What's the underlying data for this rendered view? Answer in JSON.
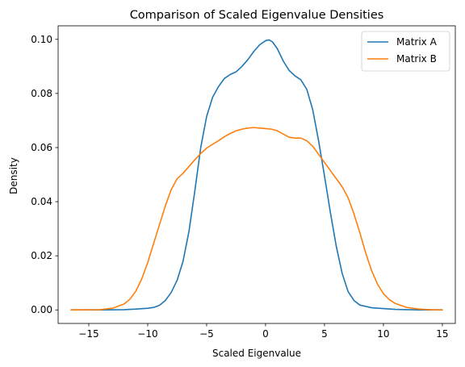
{
  "chart_data": {
    "type": "line",
    "title": "Comparison of Scaled Eigenvalue Densities",
    "xlabel": "Scaled Eigenvalue",
    "ylabel": "Density",
    "xlim": [
      -17.6,
      16.1
    ],
    "ylim": [
      -0.005,
      0.105
    ],
    "xticks": [
      -15,
      -10,
      -5,
      0,
      5,
      10,
      15
    ],
    "xtick_labels": [
      "−15",
      "−10",
      "−5",
      "0",
      "5",
      "10",
      "15"
    ],
    "yticks": [
      0.0,
      0.02,
      0.04,
      0.06,
      0.08,
      0.1
    ],
    "ytick_labels": [
      "0.00",
      "0.02",
      "0.04",
      "0.06",
      "0.08",
      "0.10"
    ],
    "grid": false,
    "legend_position": "top-right",
    "series": [
      {
        "name": "Matrix A",
        "color": "#1f77b4",
        "points": [
          [
            -16.5,
            0.0
          ],
          [
            -14,
            0.0
          ],
          [
            -12,
            0.0001
          ],
          [
            -11,
            0.0003
          ],
          [
            -10,
            0.0006
          ],
          [
            -9.5,
            0.0009
          ],
          [
            -9,
            0.0017
          ],
          [
            -8.5,
            0.0035
          ],
          [
            -8,
            0.0065
          ],
          [
            -7.5,
            0.011
          ],
          [
            -7,
            0.018
          ],
          [
            -6.5,
            0.029
          ],
          [
            -6,
            0.044
          ],
          [
            -5.5,
            0.06
          ],
          [
            -5,
            0.0715
          ],
          [
            -4.5,
            0.0785
          ],
          [
            -4,
            0.0825
          ],
          [
            -3.5,
            0.0855
          ],
          [
            -3,
            0.087
          ],
          [
            -2.5,
            0.088
          ],
          [
            -2,
            0.09
          ],
          [
            -1.5,
            0.0925
          ],
          [
            -1,
            0.0955
          ],
          [
            -0.5,
            0.098
          ],
          [
            0,
            0.0995
          ],
          [
            0.3,
            0.0998
          ],
          [
            0.6,
            0.099
          ],
          [
            1,
            0.0965
          ],
          [
            1.5,
            0.092
          ],
          [
            2,
            0.0885
          ],
          [
            2.5,
            0.0865
          ],
          [
            3,
            0.085
          ],
          [
            3.5,
            0.0815
          ],
          [
            4,
            0.074
          ],
          [
            4.5,
            0.0625
          ],
          [
            5,
            0.0495
          ],
          [
            5.5,
            0.036
          ],
          [
            6,
            0.0235
          ],
          [
            6.5,
            0.0135
          ],
          [
            7,
            0.0068
          ],
          [
            7.5,
            0.0035
          ],
          [
            8,
            0.0018
          ],
          [
            9,
            0.0008
          ],
          [
            10,
            0.0005
          ],
          [
            11,
            0.0002
          ],
          [
            12,
            0.0001
          ],
          [
            13,
            0.0
          ],
          [
            15,
            0.0
          ]
        ]
      },
      {
        "name": "Matrix B",
        "color": "#ff7f0e",
        "points": [
          [
            -16.5,
            0.0
          ],
          [
            -14,
            0.0001
          ],
          [
            -13,
            0.0006
          ],
          [
            -12,
            0.0022
          ],
          [
            -11.5,
            0.004
          ],
          [
            -11,
            0.007
          ],
          [
            -10.5,
            0.0115
          ],
          [
            -10,
            0.0175
          ],
          [
            -9.5,
            0.0245
          ],
          [
            -9,
            0.0315
          ],
          [
            -8.5,
            0.0385
          ],
          [
            -8,
            0.0445
          ],
          [
            -7.5,
            0.0485
          ],
          [
            -7,
            0.0505
          ],
          [
            -6.5,
            0.053
          ],
          [
            -6,
            0.0555
          ],
          [
            -5.5,
            0.0578
          ],
          [
            -5,
            0.0598
          ],
          [
            -4.5,
            0.0612
          ],
          [
            -4,
            0.0625
          ],
          [
            -3.5,
            0.064
          ],
          [
            -3,
            0.0652
          ],
          [
            -2.5,
            0.0662
          ],
          [
            -2,
            0.0668
          ],
          [
            -1.5,
            0.0672
          ],
          [
            -1,
            0.0674
          ],
          [
            -0.5,
            0.0672
          ],
          [
            0,
            0.067
          ],
          [
            0.5,
            0.0668
          ],
          [
            1,
            0.0662
          ],
          [
            1.5,
            0.065
          ],
          [
            2,
            0.0638
          ],
          [
            2.5,
            0.0635
          ],
          [
            3,
            0.0635
          ],
          [
            3.5,
            0.0625
          ],
          [
            4,
            0.0605
          ],
          [
            4.5,
            0.0575
          ],
          [
            5,
            0.0545
          ],
          [
            5.5,
            0.0515
          ],
          [
            6,
            0.0485
          ],
          [
            6.5,
            0.0455
          ],
          [
            7,
            0.0415
          ],
          [
            7.5,
            0.0355
          ],
          [
            8,
            0.0285
          ],
          [
            8.5,
            0.021
          ],
          [
            9,
            0.0145
          ],
          [
            9.5,
            0.0095
          ],
          [
            10,
            0.006
          ],
          [
            10.5,
            0.0038
          ],
          [
            11,
            0.0024
          ],
          [
            12,
            0.0009
          ],
          [
            13,
            0.0003
          ],
          [
            14,
            0.0001
          ],
          [
            15,
            0.0
          ]
        ]
      }
    ]
  }
}
